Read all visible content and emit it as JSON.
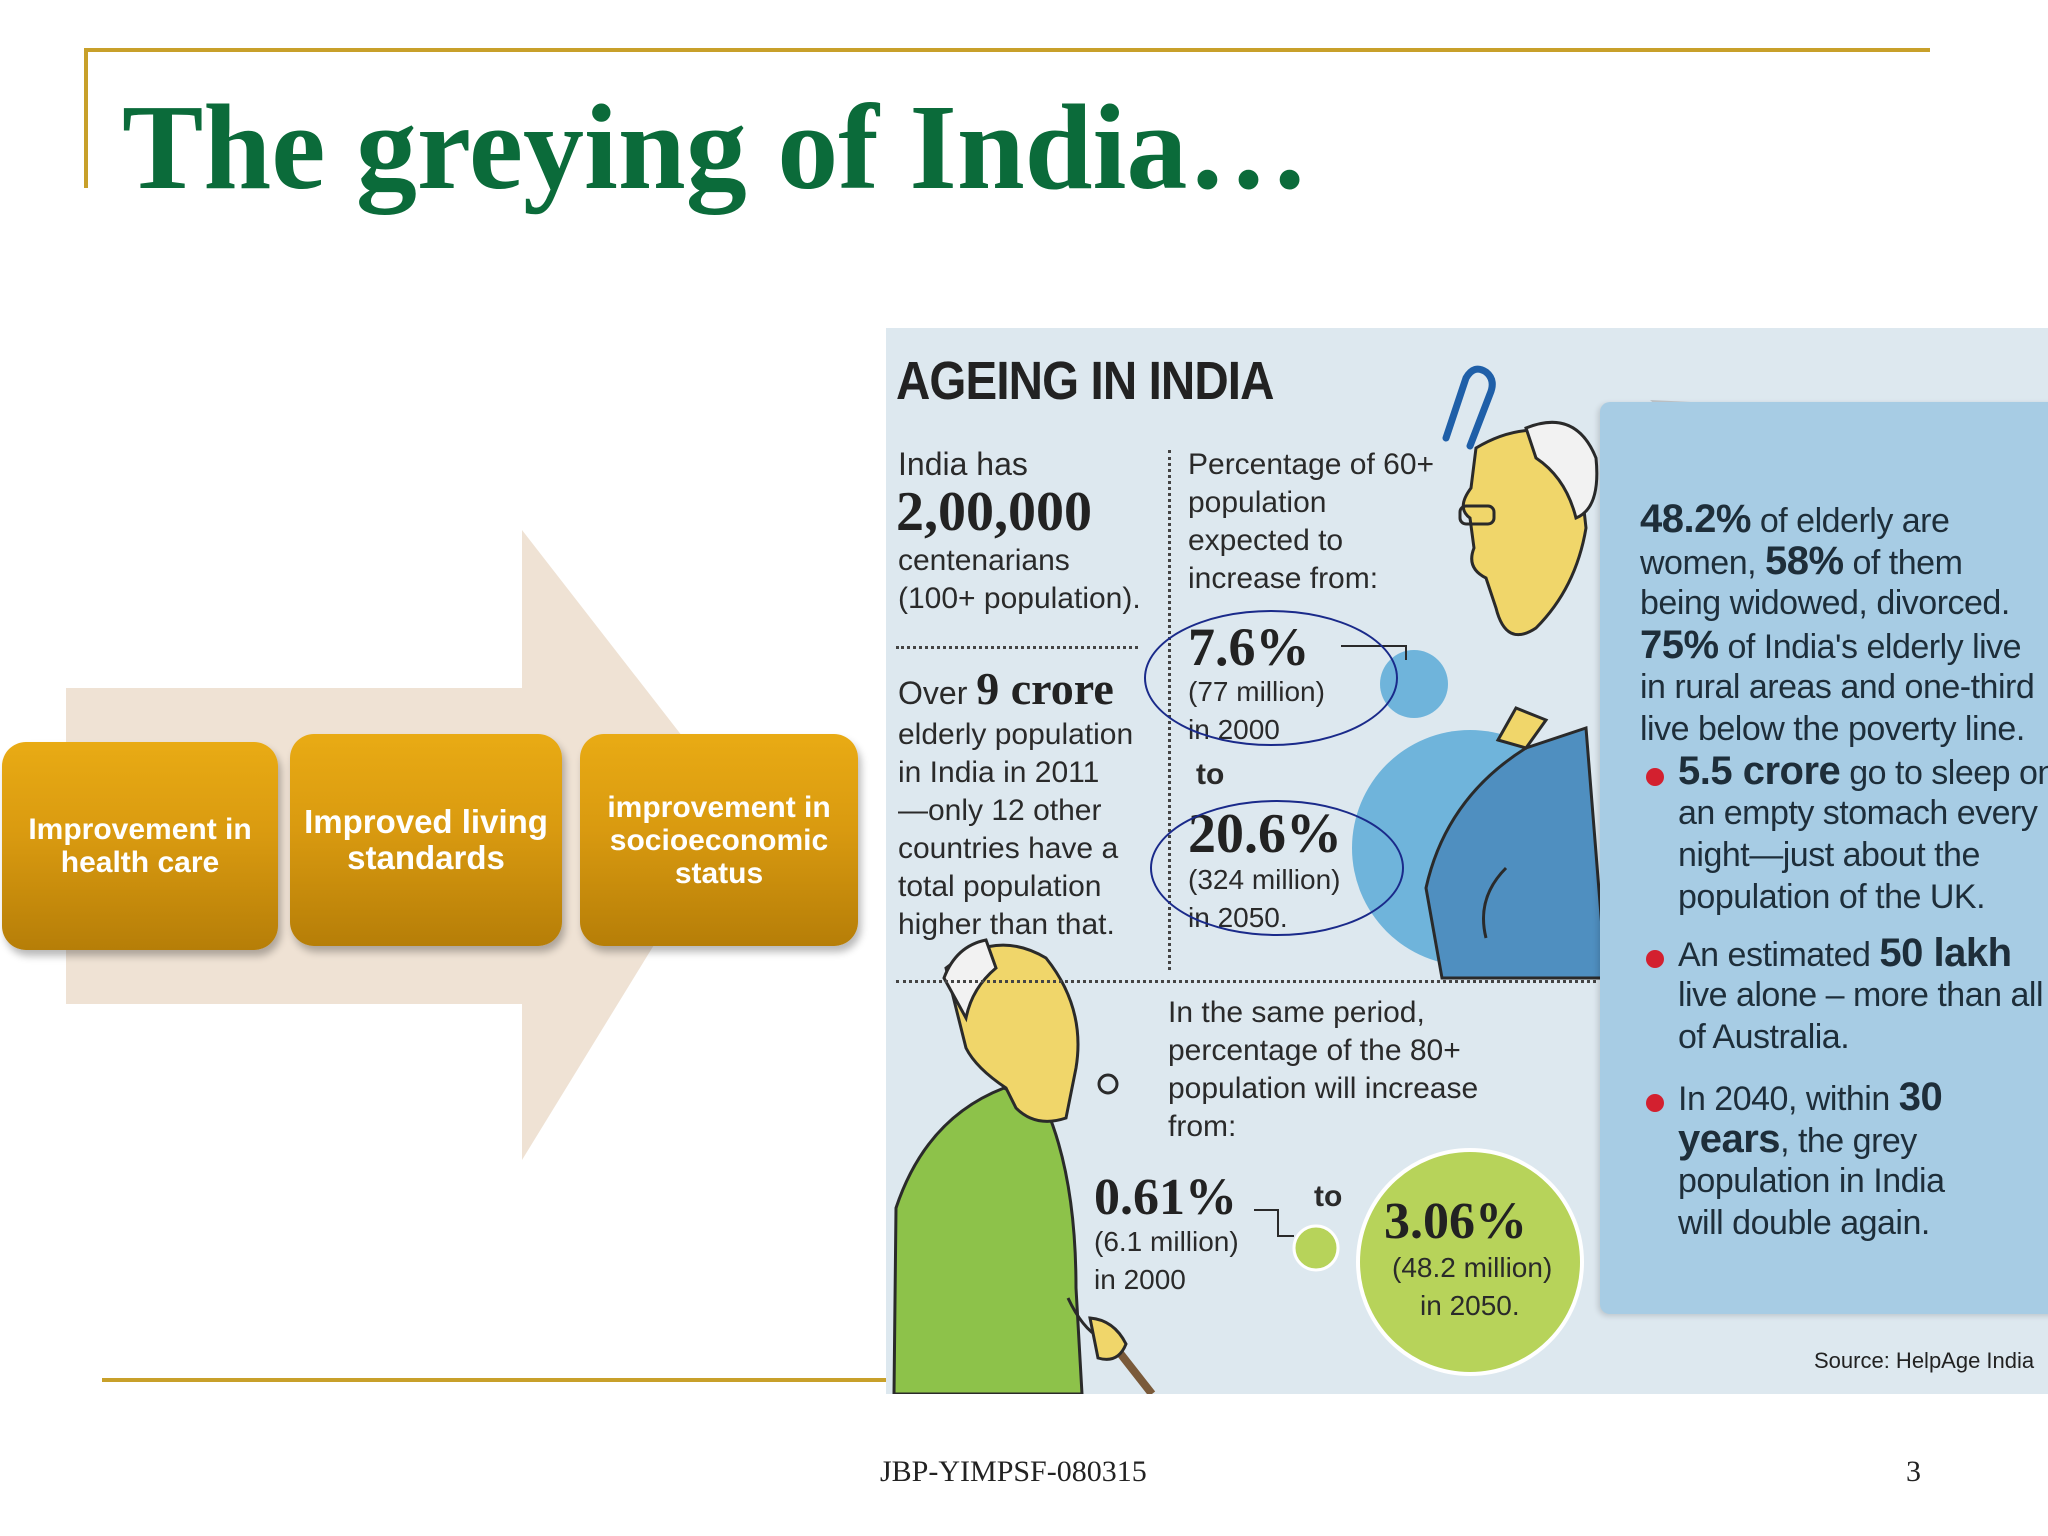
{
  "slide": {
    "title": "The greying of India…",
    "footer_code": "JBP-YIMPSF-080315",
    "page_number": "3"
  },
  "flow": {
    "boxes": [
      {
        "label": "Improvement in health care"
      },
      {
        "label": "Improved living standards"
      },
      {
        "label": "improvement in socioeconomic status"
      }
    ]
  },
  "infographic": {
    "title": "AGEING IN INDIA",
    "centenarians": {
      "line1": "India has",
      "value": "2,00,000",
      "line2": "centenarians",
      "line3": "(100+ population)."
    },
    "elderly_2011": {
      "prefix": "Over",
      "value": "9 crore",
      "lines": [
        "elderly population",
        "in India in 2011",
        "—only 12 other",
        "countries have a",
        "total population",
        "higher than that."
      ]
    },
    "pct60": {
      "lines": [
        "Percentage of 60+",
        "population",
        "expected to",
        "increase from:"
      ],
      "from_value": "7.6%",
      "from_detail": "(77 million)",
      "from_year": "in 2000",
      "to_word": "to",
      "to_value": "20.6%",
      "to_detail": "(324 million)",
      "to_year": "in 2050."
    },
    "pct80": {
      "lines": [
        "In the same period,",
        "percentage of the 80+",
        "population will increase",
        "from:"
      ],
      "from_value": "0.61%",
      "from_detail": "(6.1 million)",
      "from_year": "in 2000",
      "to_word": "to",
      "to_value": "3.06%",
      "to_detail": "(48.2 million)",
      "to_year": "in 2050."
    },
    "panel": {
      "p1": {
        "a": "48.2%",
        "b": " of elderly are"
      },
      "p2": {
        "a": "women, ",
        "b": "58%",
        "c": " of them"
      },
      "p3": "being widowed, divorced.",
      "p4": {
        "a": "75%",
        "b": " of India's elderly live"
      },
      "p5": "in rural areas and one-third",
      "p6": "live below the poverty line.",
      "b1": {
        "a": "5.5 crore",
        "b": " go to sleep on",
        "l2": "an empty stomach  every",
        "l3": "night—just about the",
        "l4": "population of the UK."
      },
      "b2": {
        "a": "An estimated ",
        "b": "50 lakh",
        "l2": "live alone – more than all",
        "l3": "of Australia."
      },
      "b3": {
        "a": "In  2040, within ",
        "b": "30",
        "l2a": "years",
        "l2b": ", the grey",
        "l3": "population in India",
        "l4": "will double again."
      },
      "source": "Source: HelpAge India"
    },
    "colors": {
      "background": "#dde8ef",
      "panel": "#a7cce4",
      "blue_bubble": "#6fb4db",
      "green_bubble": "#b7d35a",
      "bullet": "#d3202f"
    }
  }
}
